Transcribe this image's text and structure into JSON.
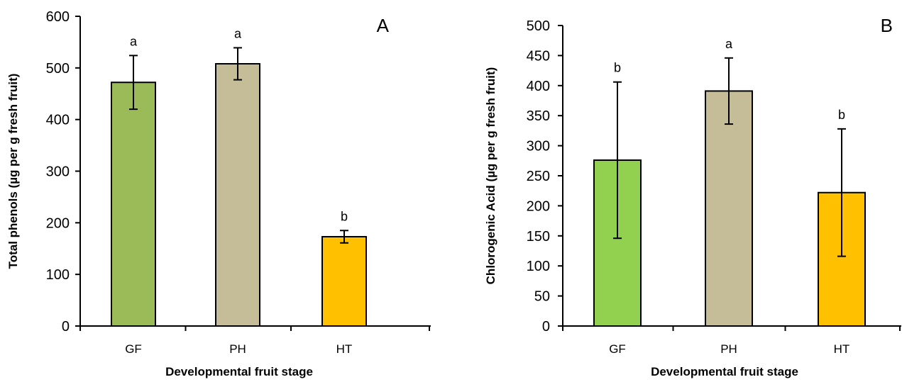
{
  "chart_data": [
    {
      "type": "bar",
      "panel_label": "A",
      "title": "",
      "xlabel": "Developmental  fruit stage",
      "ylabel": "Total phenols (µg per g fresh fruit)",
      "ylim": [
        0,
        600
      ],
      "yticks": [
        0,
        100,
        200,
        300,
        400,
        500,
        600
      ],
      "categories": [
        "GF",
        "PH",
        "HT"
      ],
      "values": [
        472,
        508,
        173
      ],
      "errors": [
        52,
        31,
        12
      ],
      "significance": [
        "a",
        "a",
        "b"
      ],
      "colors": [
        "#9bbb59",
        "#c4bd97",
        "#ffc000"
      ],
      "grid": false,
      "legend": "none"
    },
    {
      "type": "bar",
      "panel_label": "B",
      "title": "",
      "xlabel": "Developmental  fruit stage",
      "ylabel": "Chlorogenic Acid (µg per g fresh fruit)",
      "ylim": [
        0,
        500
      ],
      "yticks": [
        0,
        50,
        100,
        150,
        200,
        250,
        300,
        350,
        400,
        450,
        500
      ],
      "categories": [
        "GF",
        "PH",
        "HT"
      ],
      "values": [
        276,
        391,
        222
      ],
      "errors": [
        130,
        55,
        106
      ],
      "significance": [
        "b",
        "a",
        "b"
      ],
      "colors": [
        "#92d050",
        "#c4bd97",
        "#ffc000"
      ],
      "grid": false,
      "legend": "none"
    }
  ]
}
